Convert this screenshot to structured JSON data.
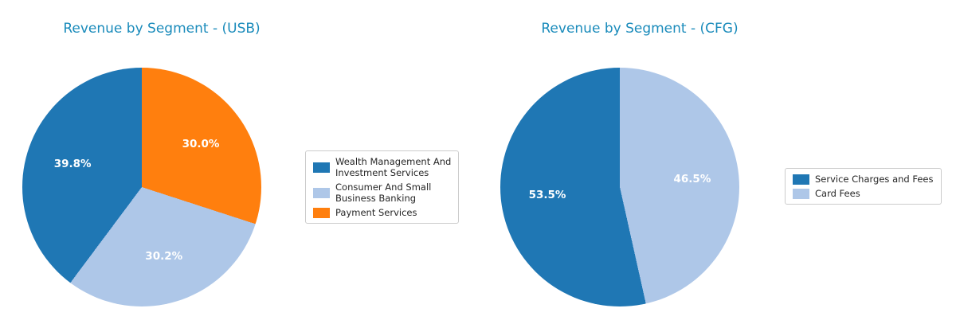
{
  "figure": {
    "background": "#ffffff"
  },
  "chart_data": [
    {
      "type": "pie",
      "title": "Revenue by Segment - (USB)",
      "title_color": "#1a8bbb",
      "labels": [
        "Wealth Management And Investment Services",
        "Consumer And Small Business Banking",
        "Payment Services"
      ],
      "values": [
        39.8,
        30.2,
        30.0
      ],
      "unit": "percent",
      "pct_labels": [
        "39.8%",
        "30.2%",
        "30.0%"
      ],
      "colors": [
        "#1f77b4",
        "#aec7e8",
        "#ff7f0e"
      ],
      "pct_label_color": "#ffffff",
      "start_angle": 90,
      "counterclockwise": true,
      "label_radius": 0.61,
      "legend": {
        "position": "right",
        "items": [
          "Wealth Management And\nInvestment Services",
          "Consumer And Small\nBusiness Banking",
          "Payment Services"
        ]
      }
    },
    {
      "type": "pie",
      "title": "Revenue by Segment - (CFG)",
      "title_color": "#1a8bbb",
      "labels": [
        "Service Charges and Fees",
        "Card Fees"
      ],
      "values": [
        53.5,
        46.5
      ],
      "unit": "percent",
      "pct_labels": [
        "53.5%",
        "46.5%"
      ],
      "colors": [
        "#1f77b4",
        "#aec7e8"
      ],
      "pct_label_color": "#ffffff",
      "start_angle": 90,
      "counterclockwise": true,
      "label_radius": 0.61,
      "legend": {
        "position": "right",
        "items": [
          "Service Charges and Fees",
          "Card Fees"
        ]
      }
    }
  ]
}
